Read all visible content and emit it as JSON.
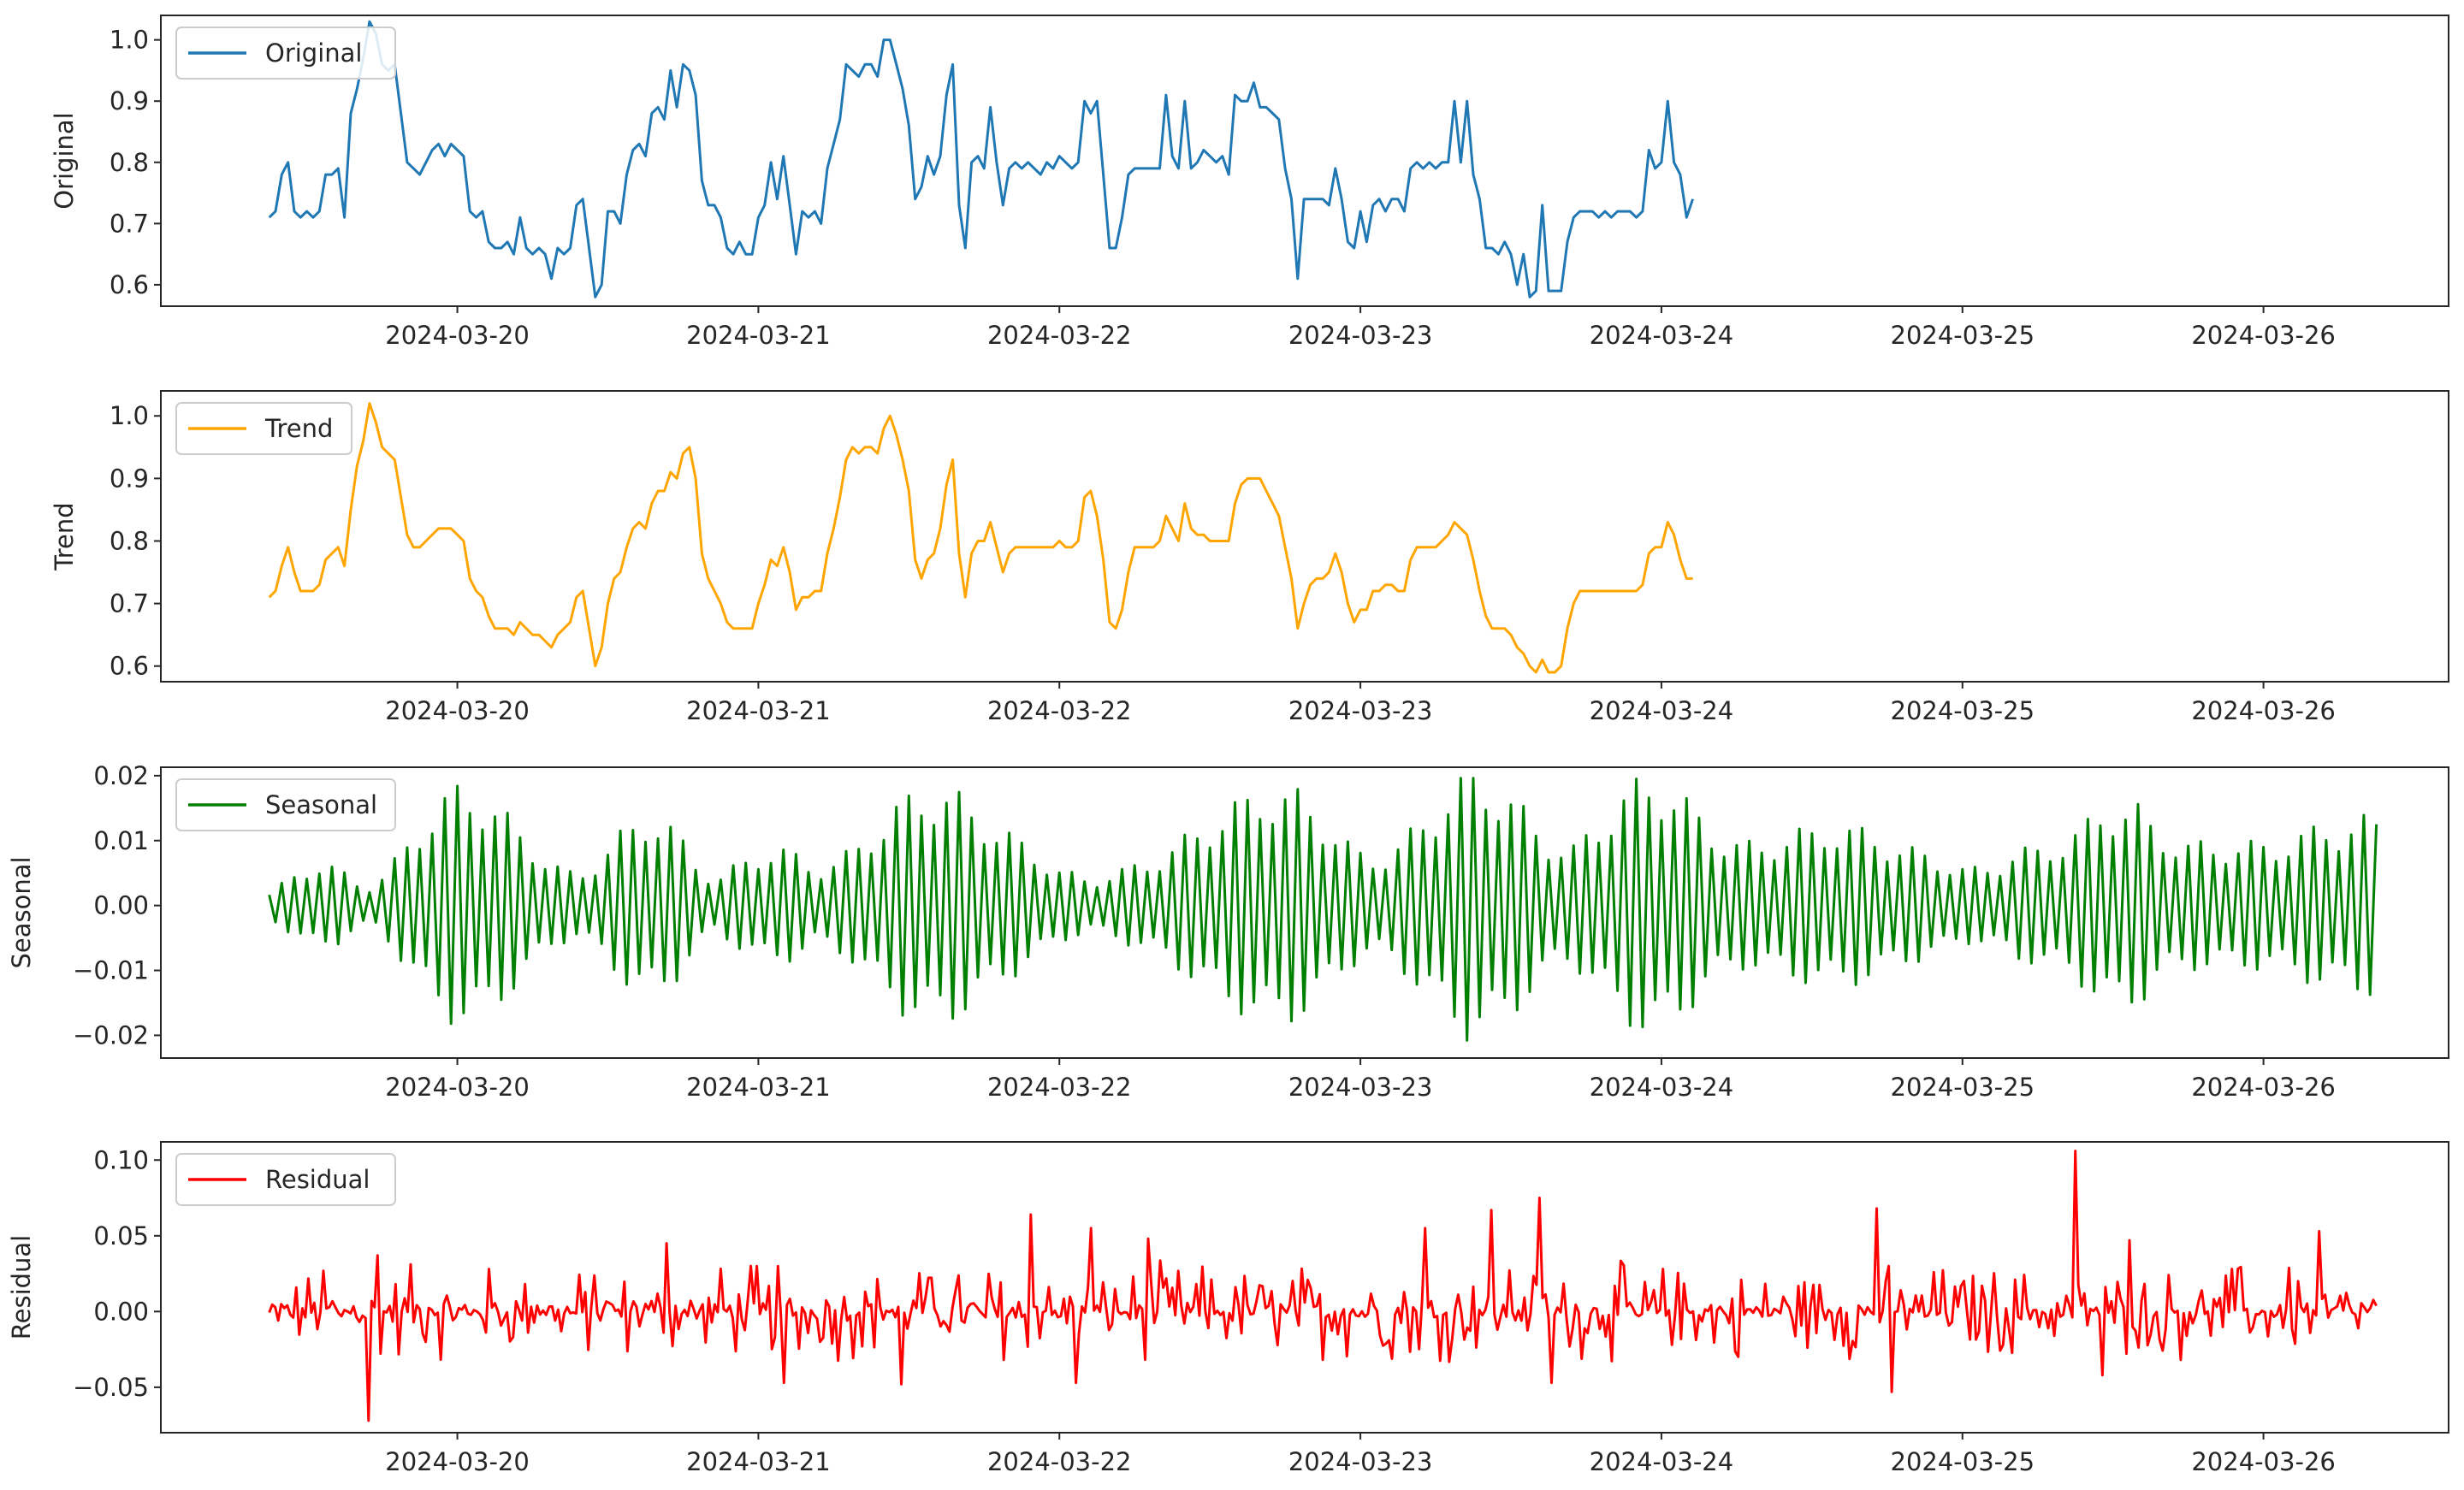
{
  "chart_data": [
    {
      "type": "line",
      "key": "original",
      "ylabel": "Original",
      "legend": "Original",
      "legend_position": "top-left",
      "color": "#1f77b4",
      "x_start": "2024-03-19 09:00",
      "x_step_hours": 0.5,
      "xlim": [
        -0.36,
        7.24
      ],
      "ylim": [
        0.565,
        1.04
      ],
      "yticks": [
        0.6,
        0.7,
        0.8,
        0.9,
        1.0
      ],
      "ytick_labels": [
        "0.6",
        "0.7",
        "0.8",
        "0.9",
        "1.0"
      ],
      "xticks": [
        0.625,
        1.625,
        2.625,
        3.625,
        4.625,
        5.625,
        6.625
      ],
      "xtick_labels": [
        "2024-03-20",
        "2024-03-21",
        "2024-03-22",
        "2024-03-23",
        "2024-03-24",
        "2024-03-25",
        "2024-03-26"
      ],
      "values": [
        0.71,
        0.72,
        0.78,
        0.8,
        0.72,
        0.71,
        0.72,
        0.71,
        0.72,
        0.78,
        0.78,
        0.79,
        0.71,
        0.88,
        0.92,
        0.97,
        1.03,
        1.01,
        0.96,
        0.95,
        0.96,
        0.88,
        0.8,
        0.79,
        0.78,
        0.8,
        0.82,
        0.83,
        0.81,
        0.83,
        0.82,
        0.81,
        0.72,
        0.71,
        0.72,
        0.67,
        0.66,
        0.66,
        0.67,
        0.65,
        0.71,
        0.66,
        0.65,
        0.66,
        0.65,
        0.61,
        0.66,
        0.65,
        0.66,
        0.73,
        0.74,
        0.66,
        0.58,
        0.6,
        0.72,
        0.72,
        0.7,
        0.78,
        0.82,
        0.83,
        0.81,
        0.88,
        0.89,
        0.87,
        0.95,
        0.89,
        0.96,
        0.95,
        0.91,
        0.77,
        0.73,
        0.73,
        0.71,
        0.66,
        0.65,
        0.67,
        0.65,
        0.65,
        0.71,
        0.73,
        0.8,
        0.74,
        0.81,
        0.73,
        0.65,
        0.72,
        0.71,
        0.72,
        0.7,
        0.79,
        0.83,
        0.87,
        0.96,
        0.95,
        0.94,
        0.96,
        0.96,
        0.94,
        1.0,
        1.0,
        0.96,
        0.92,
        0.86,
        0.74,
        0.76,
        0.81,
        0.78,
        0.81,
        0.91,
        0.96,
        0.73,
        0.66,
        0.8,
        0.81,
        0.79,
        0.89,
        0.8,
        0.73,
        0.79,
        0.8,
        0.79,
        0.8,
        0.79,
        0.78,
        0.8,
        0.79,
        0.81,
        0.8,
        0.79,
        0.8,
        0.9,
        0.88,
        0.9,
        0.78,
        0.66,
        0.66,
        0.71,
        0.78,
        0.79,
        0.79,
        0.79,
        0.79,
        0.79,
        0.91,
        0.81,
        0.79,
        0.9,
        0.79,
        0.8,
        0.82,
        0.81,
        0.8,
        0.81,
        0.78,
        0.91,
        0.9,
        0.9,
        0.93,
        0.89,
        0.89,
        0.88,
        0.87,
        0.79,
        0.74,
        0.61,
        0.74,
        0.74,
        0.74,
        0.74,
        0.73,
        0.79,
        0.74,
        0.67,
        0.66,
        0.72,
        0.67,
        0.73,
        0.74,
        0.72,
        0.74,
        0.74,
        0.72,
        0.79,
        0.8,
        0.79,
        0.8,
        0.79,
        0.8,
        0.8,
        0.9,
        0.8,
        0.9,
        0.78,
        0.74,
        0.66,
        0.66,
        0.65,
        0.67,
        0.65,
        0.6,
        0.65,
        0.58,
        0.59,
        0.73,
        0.59,
        0.59,
        0.59,
        0.67,
        0.71,
        0.72,
        0.72,
        0.72,
        0.71,
        0.72,
        0.71,
        0.72,
        0.72,
        0.72,
        0.71,
        0.72,
        0.82,
        0.79,
        0.8,
        0.9,
        0.8,
        0.78,
        0.71,
        0.74
      ]
    },
    {
      "type": "line",
      "key": "trend",
      "ylabel": "Trend",
      "legend": "Trend",
      "legend_position": "top-left",
      "color": "#ffa500",
      "x_start": "2024-03-19 09:00",
      "x_step_hours": 0.5,
      "xlim": [
        -0.36,
        7.24
      ],
      "ylim": [
        0.575,
        1.04
      ],
      "yticks": [
        0.6,
        0.7,
        0.8,
        0.9,
        1.0
      ],
      "ytick_labels": [
        "0.6",
        "0.7",
        "0.8",
        "0.9",
        "1.0"
      ],
      "xticks": [
        0.625,
        1.625,
        2.625,
        3.625,
        4.625,
        5.625,
        6.625
      ],
      "xtick_labels": [
        "2024-03-20",
        "2024-03-21",
        "2024-03-22",
        "2024-03-23",
        "2024-03-24",
        "2024-03-25",
        "2024-03-26"
      ],
      "values": [
        0.71,
        0.72,
        0.76,
        0.79,
        0.75,
        0.72,
        0.72,
        0.72,
        0.73,
        0.77,
        0.78,
        0.79,
        0.76,
        0.85,
        0.92,
        0.96,
        1.02,
        0.99,
        0.95,
        0.94,
        0.93,
        0.87,
        0.81,
        0.79,
        0.79,
        0.8,
        0.81,
        0.82,
        0.82,
        0.82,
        0.81,
        0.8,
        0.74,
        0.72,
        0.71,
        0.68,
        0.66,
        0.66,
        0.66,
        0.65,
        0.67,
        0.66,
        0.65,
        0.65,
        0.64,
        0.63,
        0.65,
        0.66,
        0.67,
        0.71,
        0.72,
        0.66,
        0.6,
        0.63,
        0.7,
        0.74,
        0.75,
        0.79,
        0.82,
        0.83,
        0.82,
        0.86,
        0.88,
        0.88,
        0.91,
        0.9,
        0.94,
        0.95,
        0.9,
        0.78,
        0.74,
        0.72,
        0.7,
        0.67,
        0.66,
        0.66,
        0.66,
        0.66,
        0.7,
        0.73,
        0.77,
        0.76,
        0.79,
        0.75,
        0.69,
        0.71,
        0.71,
        0.72,
        0.72,
        0.78,
        0.82,
        0.87,
        0.93,
        0.95,
        0.94,
        0.95,
        0.95,
        0.94,
        0.98,
        1.0,
        0.97,
        0.93,
        0.88,
        0.77,
        0.74,
        0.77,
        0.78,
        0.82,
        0.89,
        0.93,
        0.78,
        0.71,
        0.78,
        0.8,
        0.8,
        0.83,
        0.79,
        0.75,
        0.78,
        0.79,
        0.79,
        0.79,
        0.79,
        0.79,
        0.79,
        0.79,
        0.8,
        0.79,
        0.79,
        0.8,
        0.87,
        0.88,
        0.84,
        0.77,
        0.67,
        0.66,
        0.69,
        0.75,
        0.79,
        0.79,
        0.79,
        0.79,
        0.8,
        0.84,
        0.82,
        0.8,
        0.86,
        0.82,
        0.81,
        0.81,
        0.8,
        0.8,
        0.8,
        0.8,
        0.86,
        0.89,
        0.9,
        0.9,
        0.9,
        0.88,
        0.86,
        0.84,
        0.79,
        0.74,
        0.66,
        0.7,
        0.73,
        0.74,
        0.74,
        0.75,
        0.78,
        0.75,
        0.7,
        0.67,
        0.69,
        0.69,
        0.72,
        0.72,
        0.73,
        0.73,
        0.72,
        0.72,
        0.77,
        0.79,
        0.79,
        0.79,
        0.79,
        0.8,
        0.81,
        0.83,
        0.82,
        0.81,
        0.77,
        0.72,
        0.68,
        0.66,
        0.66,
        0.66,
        0.65,
        0.63,
        0.62,
        0.6,
        0.59,
        0.61,
        0.59,
        0.59,
        0.6,
        0.66,
        0.7,
        0.72,
        0.72,
        0.72,
        0.72,
        0.72,
        0.72,
        0.72,
        0.72,
        0.72,
        0.72,
        0.73,
        0.78,
        0.79,
        0.79,
        0.83,
        0.81,
        0.77,
        0.74,
        0.74
      ]
    },
    {
      "type": "line",
      "key": "seasonal",
      "ylabel": "Seasonal",
      "legend": "Seasonal",
      "legend_position": "top-left",
      "color": "#008000",
      "x_start": "2024-03-19 09:00",
      "x_step_hours": 0.5,
      "xlim": [
        -0.36,
        7.24
      ],
      "ylim": [
        -0.0235,
        0.0213
      ],
      "yticks": [
        -0.02,
        -0.01,
        0.0,
        0.01,
        0.02
      ],
      "ytick_labels": [
        "−0.02",
        "−0.01",
        "0.00",
        "0.01",
        "0.02"
      ],
      "xticks": [
        0.625,
        1.625,
        2.625,
        3.625,
        4.625,
        5.625,
        6.625
      ],
      "xtick_labels": [
        "2024-03-20",
        "2024-03-21",
        "2024-03-22",
        "2024-03-23",
        "2024-03-24",
        "2024-03-25",
        "2024-03-26"
      ],
      "cycle_hours": 1.0,
      "envelope": [
        0.002,
        0.004,
        0.006,
        0.007,
        0.006,
        0.004,
        0.003,
        0.006,
        0.01,
        0.014,
        0.017,
        0.019,
        0.019,
        0.017,
        0.014,
        0.011,
        0.008,
        0.006,
        0.005,
        0.007,
        0.01,
        0.013,
        0.015,
        0.014,
        0.011,
        0.007,
        0.004,
        0.006,
        0.008,
        0.009,
        0.009,
        0.008,
        0.006,
        0.007,
        0.009,
        0.012,
        0.014,
        0.017,
        0.019,
        0.019,
        0.018,
        0.016,
        0.014,
        0.012,
        0.01,
        0.008,
        0.006,
        0.005,
        0.004,
        0.005,
        0.006,
        0.007,
        0.008,
        0.01,
        0.012,
        0.014,
        0.016,
        0.017,
        0.019,
        0.019,
        0.018,
        0.016,
        0.013,
        0.01,
        0.008,
        0.008,
        0.01,
        0.013,
        0.016,
        0.019,
        0.021,
        0.021,
        0.019,
        0.016,
        0.013,
        0.01,
        0.009,
        0.012,
        0.015,
        0.018,
        0.02,
        0.021,
        0.019,
        0.016,
        0.013,
        0.011,
        0.01,
        0.01,
        0.011,
        0.012,
        0.012,
        0.013,
        0.013,
        0.012,
        0.011,
        0.01,
        0.009,
        0.008,
        0.007,
        0.006,
        0.006,
        0.007,
        0.009,
        0.009,
        0.01,
        0.011,
        0.013,
        0.016,
        0.017,
        0.016,
        0.013,
        0.011,
        0.01,
        0.01,
        0.01,
        0.01,
        0.01,
        0.01,
        0.011,
        0.012,
        0.013,
        0.013,
        0.014,
        0.014
      ]
    },
    {
      "type": "line",
      "key": "residual",
      "ylabel": "Residual",
      "legend": "Residual",
      "legend_position": "top-left",
      "color": "#ff0000",
      "x_start": "2024-03-19 09:00",
      "x_step_hours": 0.5,
      "xlim": [
        -0.36,
        7.24
      ],
      "ylim": [
        -0.08,
        0.112
      ],
      "yticks": [
        -0.05,
        0.0,
        0.05,
        0.1
      ],
      "ytick_labels": [
        "−0.05",
        "0.00",
        "0.05",
        "0.10"
      ],
      "xticks": [
        0.625,
        1.625,
        2.625,
        3.625,
        4.625,
        5.625,
        6.625
      ],
      "xtick_labels": [
        "2024-03-20",
        "2024-03-21",
        "2024-03-22",
        "2024-03-23",
        "2024-03-24",
        "2024-03-25",
        "2024-03-26"
      ],
      "spikes": [
        {
          "day": 0.33,
          "value": -0.072
        },
        {
          "day": 0.36,
          "value": 0.037
        },
        {
          "day": 1.32,
          "value": 0.045
        },
        {
          "day": 1.71,
          "value": -0.047
        },
        {
          "day": 2.1,
          "value": -0.048
        },
        {
          "day": 2.53,
          "value": 0.064
        },
        {
          "day": 2.68,
          "value": -0.047
        },
        {
          "day": 2.73,
          "value": 0.055
        },
        {
          "day": 2.92,
          "value": 0.048
        },
        {
          "day": 3.84,
          "value": 0.055
        },
        {
          "day": 4.06,
          "value": 0.067
        },
        {
          "day": 4.22,
          "value": 0.075
        },
        {
          "day": 4.26,
          "value": -0.047
        },
        {
          "day": 5.34,
          "value": 0.068
        },
        {
          "day": 5.39,
          "value": -0.053
        },
        {
          "day": 6.0,
          "value": 0.106
        },
        {
          "day": 6.09,
          "value": -0.042
        },
        {
          "day": 6.18,
          "value": 0.047
        },
        {
          "day": 6.81,
          "value": 0.053
        }
      ]
    }
  ]
}
